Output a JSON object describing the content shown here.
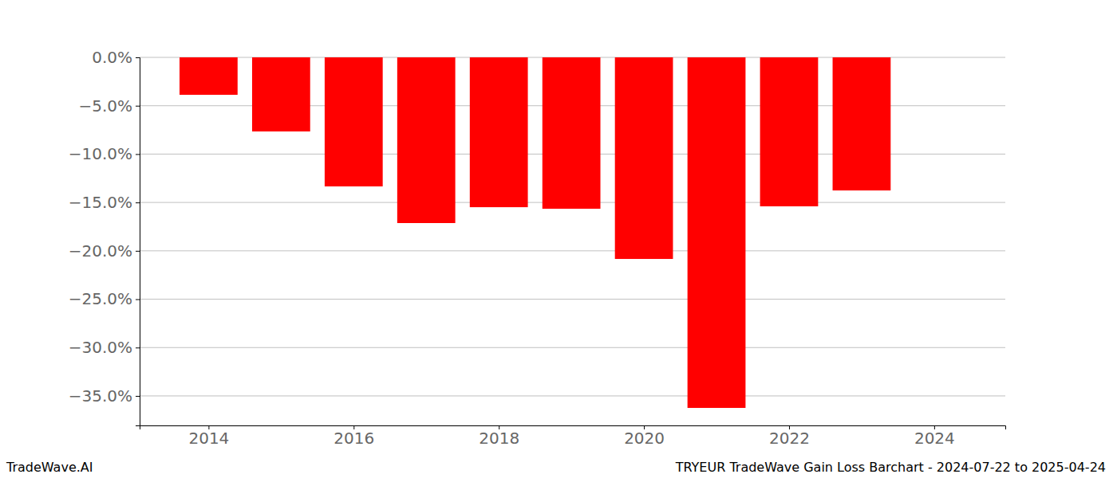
{
  "chart_data": {
    "type": "bar",
    "title": "TRYEUR TradeWave Gain Loss Barchart - 2024-07-22 to 2025-04-24",
    "watermark": "TradeWave.AI",
    "x": [
      2014,
      2015,
      2016,
      2017,
      2018,
      2019,
      2020,
      2021,
      2022,
      2023
    ],
    "values": [
      -3.87,
      -7.66,
      -13.34,
      -17.13,
      -15.49,
      -15.65,
      -20.84,
      -36.24,
      -15.4,
      -13.76
    ],
    "color": "#ff0000",
    "xlim": [
      2013.05,
      2024.98
    ],
    "xticks": [
      2014,
      2016,
      2018,
      2020,
      2022,
      2024
    ],
    "ylim": [
      -38.05,
      0
    ],
    "yticks": [
      {
        "value": 0,
        "label": "0.0%"
      },
      {
        "value": -5,
        "label": "−5.0%"
      },
      {
        "value": -10,
        "label": "−10.0%"
      },
      {
        "value": -15,
        "label": "−15.0%"
      },
      {
        "value": -20,
        "label": "−20.0%"
      },
      {
        "value": -25,
        "label": "−25.0%"
      },
      {
        "value": -30,
        "label": "−30.0%"
      },
      {
        "value": -35,
        "label": "−35.0%"
      }
    ],
    "grid": true
  }
}
